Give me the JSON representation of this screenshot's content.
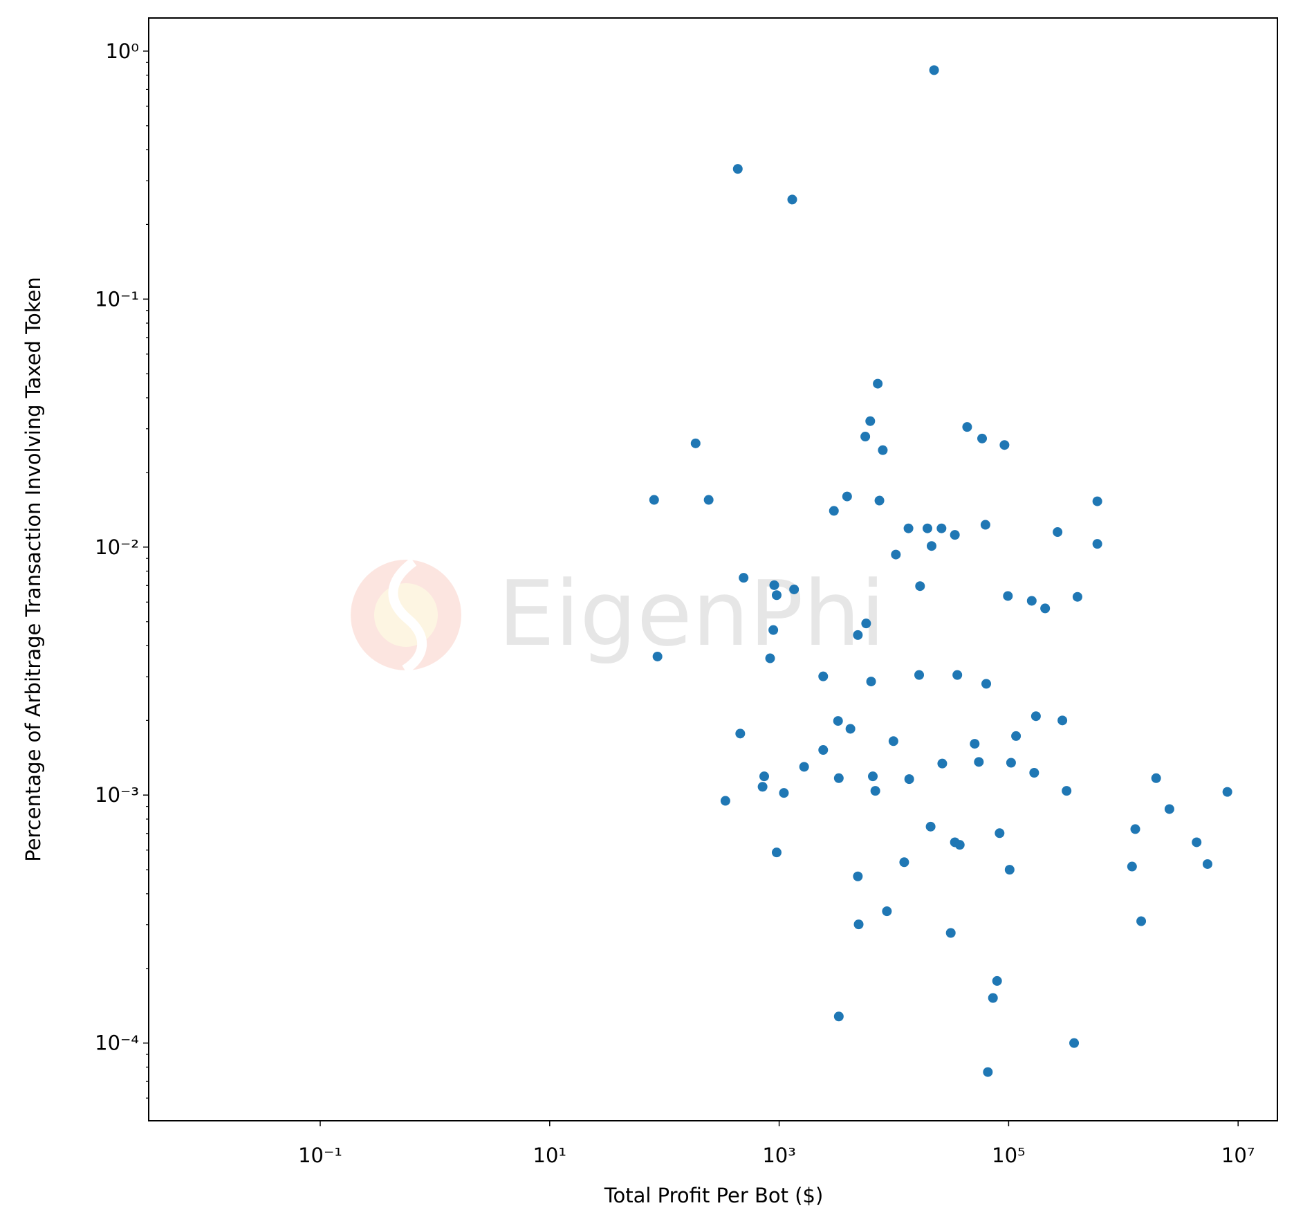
{
  "chart_data": {
    "type": "scatter",
    "xlabel": "Total Profit Per Bot ($)",
    "ylabel": "Percentage of Arbitrage Transaction Involving Taxed Token",
    "watermark": "EigenPhi",
    "xscale": "log",
    "yscale": "log",
    "color": "#1f77b4",
    "xlim": [
      0.0032,
      22000000
    ],
    "ylim": [
      4.86e-05,
      1.36
    ],
    "xticks": [
      {
        "value": 0.1,
        "label": "10⁻¹"
      },
      {
        "value": 10,
        "label": "10¹"
      },
      {
        "value": 1000,
        "label": "10³"
      },
      {
        "value": 100000,
        "label": "10⁵"
      },
      {
        "value": 10000000,
        "label": "10⁷"
      }
    ],
    "yticks": [
      {
        "value": 0.0001,
        "label": "10⁻⁴"
      },
      {
        "value": 0.001,
        "label": "10⁻³"
      },
      {
        "value": 0.01,
        "label": "10⁻²"
      },
      {
        "value": 0.1,
        "label": "10⁻¹"
      },
      {
        "value": 1,
        "label": "10⁰"
      }
    ],
    "yminorticks": [
      6e-05,
      7e-05,
      8e-05,
      9e-05,
      0.0002,
      0.0003,
      0.0004,
      0.0005,
      0.0006,
      0.0007,
      0.0008,
      0.0009,
      0.002,
      0.003,
      0.004,
      0.005,
      0.006,
      0.007,
      0.008,
      0.009,
      0.02,
      0.03,
      0.04,
      0.05,
      0.06,
      0.07,
      0.08,
      0.09,
      0.2,
      0.3,
      0.4,
      0.5,
      0.6,
      0.7,
      0.8,
      0.9
    ],
    "x": [
      22400,
      436,
      1300,
      7230,
      6220,
      5630,
      8000,
      187,
      81.3,
      243,
      3910,
      3000,
      7480,
      43500,
      58700,
      92000,
      593000,
      593000,
      13400,
      19600,
      26000,
      34000,
      21300,
      62800,
      267000,
      10400,
      490,
      906,
      951,
      1349,
      16900,
      98500,
      159000,
      208000,
      398000,
      889,
      5730,
      4850,
      87,
      834,
      2420,
      16600,
      35700,
      6330,
      63800,
      173000,
      294000,
      3260,
      4180,
      458,
      116000,
      9910,
      50600,
      2420,
      26400,
      55000,
      105000,
      1650,
      167000,
      741,
      3310,
      6550,
      13600,
      1930000,
      717,
      1100,
      6890,
      320000,
      8060000,
      340,
      2520000,
      20900,
      1270000,
      83400,
      34000,
      37500,
      4350000,
      951,
      12300,
      5410000,
      1190000,
      102000,
      4850,
      8690,
      1430000,
      4930,
      31300,
      79300,
      73000,
      3310,
      372000,
      65900
    ],
    "values": [
      0.838,
      0.335,
      0.252,
      0.0456,
      0.0322,
      0.0279,
      0.0246,
      0.0262,
      0.0155,
      0.0155,
      0.016,
      0.014,
      0.0154,
      0.0305,
      0.0274,
      0.0258,
      0.0153,
      0.0103,
      0.0119,
      0.0119,
      0.0119,
      0.0112,
      0.0101,
      0.0123,
      0.0115,
      0.00933,
      0.00752,
      0.00702,
      0.0064,
      0.00675,
      0.00696,
      0.00635,
      0.00607,
      0.00566,
      0.0063,
      0.00463,
      0.00492,
      0.00442,
      0.00362,
      0.00356,
      0.00301,
      0.00305,
      0.00305,
      0.00287,
      0.00281,
      0.00208,
      0.002,
      0.00199,
      0.00185,
      0.00177,
      0.00173,
      0.00165,
      0.00161,
      0.00152,
      0.00134,
      0.00136,
      0.00135,
      0.0013,
      0.00123,
      0.00119,
      0.00117,
      0.00119,
      0.00116,
      0.00117,
      0.00108,
      0.00102,
      0.00104,
      0.00104,
      0.00103,
      0.000948,
      0.000878,
      0.000746,
      0.000729,
      0.000702,
      0.000645,
      0.00063,
      0.000645,
      0.000587,
      0.000536,
      0.000527,
      0.000515,
      0.0005,
      0.00047,
      0.00034,
      0.00031,
      0.000301,
      0.000278,
      0.000178,
      0.000152,
      0.000128,
      0.0001,
      7.64e-05
    ]
  }
}
